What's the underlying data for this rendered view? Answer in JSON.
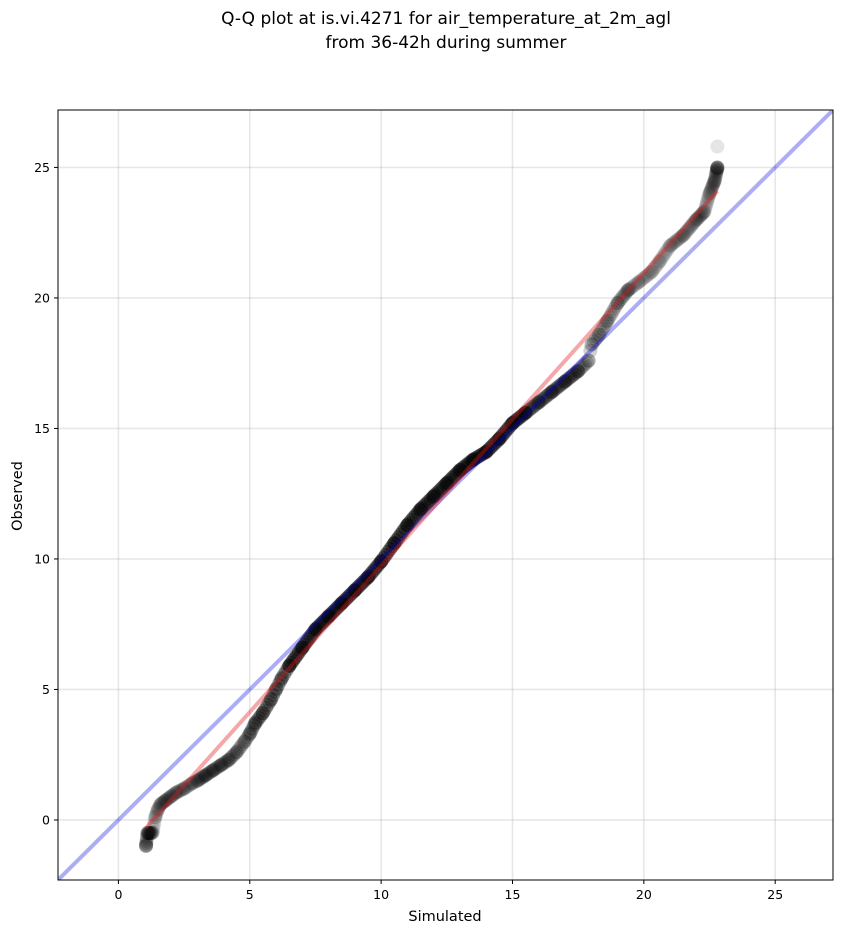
{
  "chart_data": {
    "type": "scatter",
    "title_lines": [
      "Q-Q plot at is.vi.4271 for air_temperature_at_2m_agl",
      "from 36-42h during summer"
    ],
    "xlabel": "Simulated",
    "ylabel": "Observed",
    "xlim": [
      -2.3,
      27.2
    ],
    "ylim": [
      -2.3,
      27.2
    ],
    "xticks": [
      0,
      5,
      10,
      15,
      20,
      25
    ],
    "yticks": [
      0,
      5,
      10,
      15,
      20,
      25
    ],
    "xtick_labels": [
      "0",
      "5",
      "10",
      "15",
      "20",
      "25"
    ],
    "ytick_labels": [
      "0",
      "5",
      "10",
      "15",
      "20",
      "25"
    ],
    "grid": true,
    "reference_line": {
      "slope": 1,
      "intercept": 0,
      "color": "#0000dd"
    },
    "fit_line": {
      "x": [
        1.05,
        22.8
      ],
      "y": [
        -0.3,
        24.1
      ],
      "color": "#e31a1c"
    },
    "point_color": "#000000",
    "quantile_curve": [
      {
        "x": 1.05,
        "y": -1.0
      },
      {
        "x": 1.1,
        "y": -0.5
      },
      {
        "x": 1.3,
        "y": -0.5
      },
      {
        "x": 1.4,
        "y": 0.1
      },
      {
        "x": 1.5,
        "y": 0.4
      },
      {
        "x": 1.6,
        "y": 0.6
      },
      {
        "x": 1.8,
        "y": 0.75
      },
      {
        "x": 2.0,
        "y": 0.9
      },
      {
        "x": 2.2,
        "y": 1.05
      },
      {
        "x": 2.5,
        "y": 1.2
      },
      {
        "x": 2.8,
        "y": 1.4
      },
      {
        "x": 3.0,
        "y": 1.5
      },
      {
        "x": 3.3,
        "y": 1.7
      },
      {
        "x": 3.6,
        "y": 1.9
      },
      {
        "x": 3.9,
        "y": 2.1
      },
      {
        "x": 4.2,
        "y": 2.3
      },
      {
        "x": 4.5,
        "y": 2.6
      },
      {
        "x": 4.8,
        "y": 3.0
      },
      {
        "x": 5.0,
        "y": 3.3
      },
      {
        "x": 5.2,
        "y": 3.7
      },
      {
        "x": 5.5,
        "y": 4.1
      },
      {
        "x": 5.8,
        "y": 4.6
      },
      {
        "x": 6.0,
        "y": 5.0
      },
      {
        "x": 6.2,
        "y": 5.4
      },
      {
        "x": 6.5,
        "y": 5.9
      },
      {
        "x": 7.0,
        "y": 6.6
      },
      {
        "x": 7.5,
        "y": 7.3
      },
      {
        "x": 8.0,
        "y": 7.8
      },
      {
        "x": 8.5,
        "y": 8.3
      },
      {
        "x": 9.0,
        "y": 8.8
      },
      {
        "x": 9.5,
        "y": 9.3
      },
      {
        "x": 10.0,
        "y": 9.9
      },
      {
        "x": 10.5,
        "y": 10.6
      },
      {
        "x": 11.0,
        "y": 11.3
      },
      {
        "x": 11.5,
        "y": 11.9
      },
      {
        "x": 12.0,
        "y": 12.4
      },
      {
        "x": 12.5,
        "y": 12.9
      },
      {
        "x": 13.0,
        "y": 13.4
      },
      {
        "x": 13.5,
        "y": 13.8
      },
      {
        "x": 14.0,
        "y": 14.1
      },
      {
        "x": 14.5,
        "y": 14.6
      },
      {
        "x": 15.0,
        "y": 15.2
      },
      {
        "x": 15.5,
        "y": 15.6
      },
      {
        "x": 16.0,
        "y": 16.0
      },
      {
        "x": 16.5,
        "y": 16.4
      },
      {
        "x": 17.0,
        "y": 16.8
      },
      {
        "x": 17.5,
        "y": 17.2
      },
      {
        "x": 17.9,
        "y": 17.6
      },
      {
        "x": 18.0,
        "y": 18.2
      },
      {
        "x": 18.3,
        "y": 18.6
      },
      {
        "x": 18.6,
        "y": 19.1
      },
      {
        "x": 19.0,
        "y": 19.8
      },
      {
        "x": 19.4,
        "y": 20.3
      },
      {
        "x": 19.8,
        "y": 20.6
      },
      {
        "x": 20.3,
        "y": 21.0
      },
      {
        "x": 20.6,
        "y": 21.4
      },
      {
        "x": 21.0,
        "y": 22.0
      },
      {
        "x": 21.5,
        "y": 22.4
      },
      {
        "x": 22.0,
        "y": 23.0
      },
      {
        "x": 22.3,
        "y": 23.3
      },
      {
        "x": 22.5,
        "y": 24.0
      },
      {
        "x": 22.7,
        "y": 24.5
      },
      {
        "x": 22.8,
        "y": 25.0
      },
      {
        "x": 22.8,
        "y": 25.8
      }
    ]
  }
}
